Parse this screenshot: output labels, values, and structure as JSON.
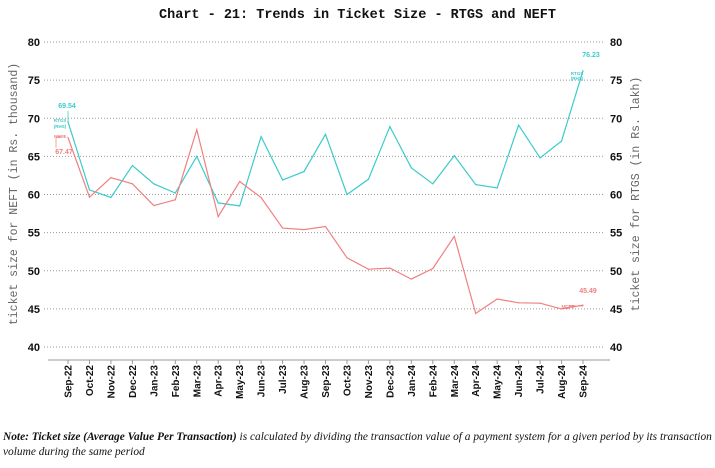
{
  "chart_data": {
    "type": "line",
    "title": "Chart - 21: Trends in Ticket Size - RTGS and NEFT",
    "xlabel": "",
    "ylabel": "ticket size for NEFT (in Rs. thousand)",
    "y2label": "ticket size for RTGS (in Rs. lakh)",
    "ylim": [
      40,
      80
    ],
    "y2lim": [
      40,
      80
    ],
    "yticks": [
      "40",
      "45",
      "50",
      "55",
      "60",
      "65",
      "70",
      "75",
      "80"
    ],
    "grid": true,
    "categories": [
      "Sep-22",
      "Oct-22",
      "Nov-22",
      "Dec-22",
      "Jan-23",
      "Feb-23",
      "Mar-23",
      "Apr-23",
      "May-23",
      "Jun-23",
      "Jul-23",
      "Aug-23",
      "Sep-23",
      "Oct-23",
      "Nov-23",
      "Dec-23",
      "Jan-24",
      "Feb-24",
      "Mar-24",
      "Apr-24",
      "May-24",
      "Jun-24",
      "Jul-24",
      "Aug-24",
      "Sep-24"
    ],
    "series": [
      {
        "name": "RTGS (RHS)",
        "axis": "right",
        "color": "#3ccbcb",
        "values": [
          69.54,
          60.6,
          59.6,
          63.8,
          61.4,
          60.2,
          65.0,
          58.9,
          58.5,
          67.6,
          61.9,
          63.0,
          67.9,
          60.0,
          62.0,
          68.9,
          63.5,
          61.4,
          65.1,
          61.3,
          60.85,
          69.1,
          64.8,
          67.0,
          76.23
        ]
      },
      {
        "name": "NEFT",
        "axis": "left",
        "color": "#f08080",
        "values": [
          67.47,
          59.65,
          62.2,
          61.4,
          58.55,
          59.3,
          68.5,
          57.1,
          61.7,
          59.6,
          55.6,
          55.4,
          55.8,
          51.7,
          50.2,
          50.35,
          48.9,
          50.3,
          54.5,
          44.4,
          46.3,
          45.8,
          45.75,
          45.0,
          45.49
        ]
      }
    ],
    "annotations": [
      {
        "series": "RTGS (RHS)",
        "category": "Sep-22",
        "value_label": "69.54",
        "series_label": "RTGS (RHS)"
      },
      {
        "series": "NEFT",
        "category": "Sep-22",
        "value_label": "67.47",
        "series_label": "NEFT"
      },
      {
        "series": "RTGS (RHS)",
        "category": "Sep-24",
        "value_label": "76.23",
        "series_label": "RTGS (RHS)"
      },
      {
        "series": "NEFT",
        "category": "Sep-24",
        "value_label": "45.49",
        "series_label": "NEFT"
      }
    ]
  },
  "note": {
    "prefix": "Note: Ticket size (Average Value Per Transaction)",
    "text": " is calculated by dividing the transaction value of a payment system for a given period by its transaction volume during the same period"
  }
}
